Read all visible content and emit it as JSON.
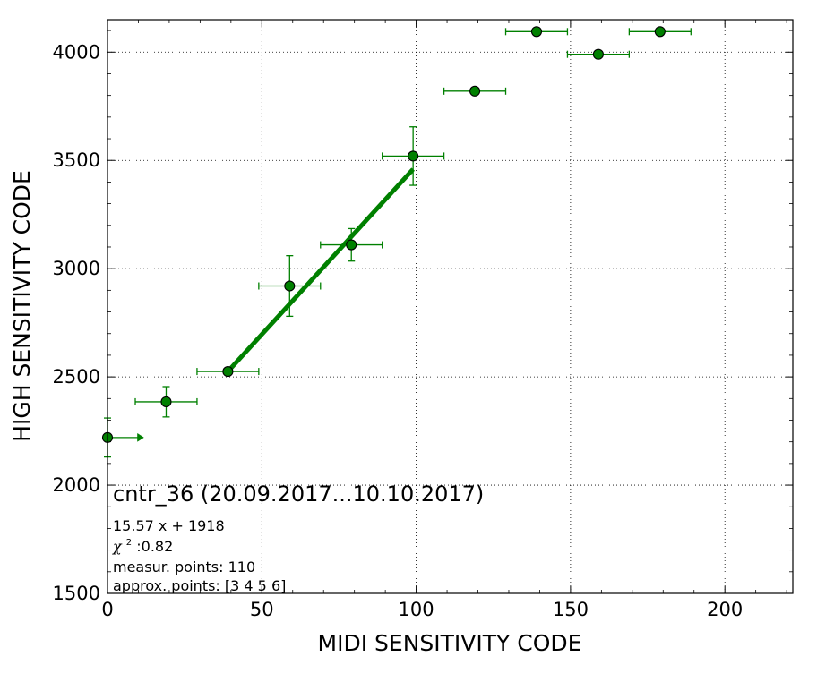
{
  "chart_data": {
    "type": "scatter",
    "title": "",
    "xlabel": "MIDI SENSITIVITY CODE",
    "ylabel": "HIGH SENSITIVITY CODE",
    "xlim": [
      0,
      222
    ],
    "ylim": [
      1500,
      4150
    ],
    "xticks": [
      0,
      50,
      100,
      150,
      200
    ],
    "xtick_labels": [
      "0",
      "50",
      "100",
      "150",
      "200"
    ],
    "yticks": [
      1500,
      2000,
      2500,
      3000,
      3500,
      4000
    ],
    "ytick_labels": [
      "1500",
      "2000",
      "2500",
      "3000",
      "3500",
      "4000"
    ],
    "grid": true,
    "color": "#008000",
    "marker_color": "#008000",
    "points": [
      {
        "x": 0,
        "y": 2220,
        "xerr": [
          0,
          10
        ],
        "yerr": [
          90,
          90
        ],
        "lower_limit_arrow": true
      },
      {
        "x": 19,
        "y": 2385,
        "xerr": [
          10,
          10
        ],
        "yerr": [
          70,
          70
        ]
      },
      {
        "x": 39,
        "y": 2525,
        "xerr": [
          10,
          10
        ],
        "yerr": [
          0,
          0
        ]
      },
      {
        "x": 59,
        "y": 2920,
        "xerr": [
          10,
          10
        ],
        "yerr": [
          140,
          140
        ]
      },
      {
        "x": 79,
        "y": 3110,
        "xerr": [
          10,
          10
        ],
        "yerr": [
          75,
          75
        ]
      },
      {
        "x": 99,
        "y": 3520,
        "xerr": [
          10,
          10
        ],
        "yerr": [
          135,
          135
        ]
      },
      {
        "x": 119,
        "y": 3820,
        "xerr": [
          10,
          10
        ],
        "yerr": [
          0,
          0
        ]
      },
      {
        "x": 139,
        "y": 4095,
        "xerr": [
          10,
          10
        ],
        "yerr": [
          0,
          0
        ]
      },
      {
        "x": 159,
        "y": 3990,
        "xerr": [
          10,
          10
        ],
        "yerr": [
          0,
          0
        ]
      },
      {
        "x": 179,
        "y": 4095,
        "xerr": [
          10,
          10
        ],
        "yerr": [
          0,
          0
        ]
      }
    ],
    "fit": {
      "slope": 15.57,
      "intercept": 1918,
      "x_range": [
        39,
        99
      ],
      "color": "#008000"
    },
    "annotation": {
      "title": "cntr_36 (20.09.2017...10.10.2017)",
      "fit_label": "15.57 x + 1918",
      "chi_symbol": "χ",
      "chi_sup": "2",
      "chi_value": " :0.82",
      "measur_points": "measur. points: 110",
      "approx_points": "approx. points: [3 4 5 6]"
    }
  }
}
